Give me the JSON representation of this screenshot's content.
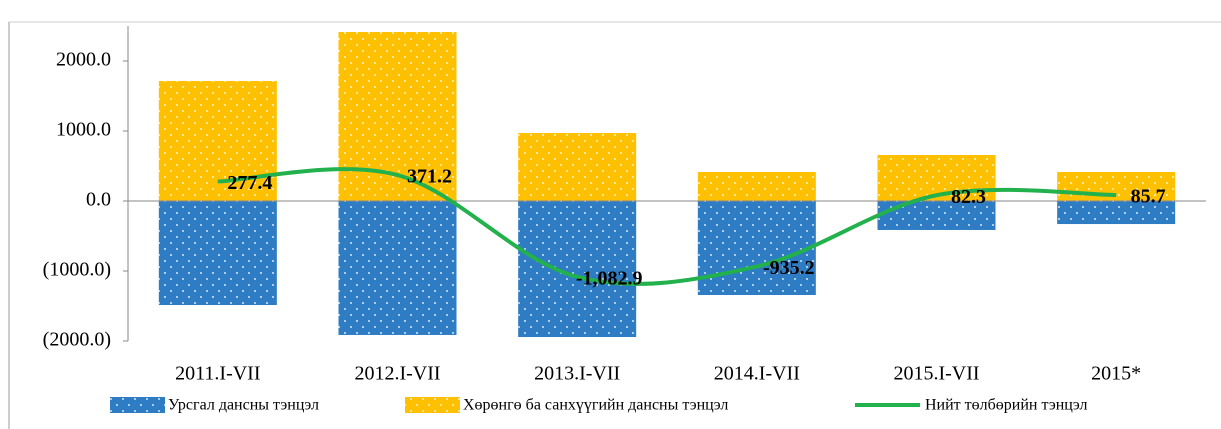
{
  "chart_data": {
    "type": "bar",
    "categories": [
      "2011.I-VII",
      "2012.I-VII",
      "2013.I-VII",
      "2014.I-VII",
      "2015.I-VII",
      "2015*"
    ],
    "series": [
      {
        "name": "Урсгал дансны тэнцэл",
        "color": "#2e7dc4",
        "type": "bar",
        "values": [
          -1486,
          -1914,
          -1943,
          -1343,
          -414,
          -329
        ]
      },
      {
        "name": "Хөрөнгө ба санхүүгийн дансны тэнцэл",
        "color": "#ffc000",
        "type": "bar",
        "values": [
          1714,
          2414,
          971,
          414,
          657,
          414
        ]
      },
      {
        "name": "Нийт төлбөрийн тэнцэл",
        "color": "#22b14c",
        "type": "line",
        "values": [
          277.4,
          371.2,
          -1082.9,
          -935.2,
          82.3,
          85.7
        ],
        "value_labels": [
          "277.4",
          "371.2",
          "-1,082.9",
          "-935.2",
          "82.3",
          "85.7"
        ]
      }
    ],
    "stacked": true,
    "ylim": [
      -2000,
      2500
    ],
    "yticks": [
      {
        "value": -2000,
        "label": "(2000.0)"
      },
      {
        "value": -1000,
        "label": "(1000.0)"
      },
      {
        "value": 0,
        "label": "0.0"
      },
      {
        "value": 1000,
        "label": "1000.0"
      },
      {
        "value": 2000,
        "label": "2000.0"
      }
    ],
    "legend": "bottom"
  }
}
